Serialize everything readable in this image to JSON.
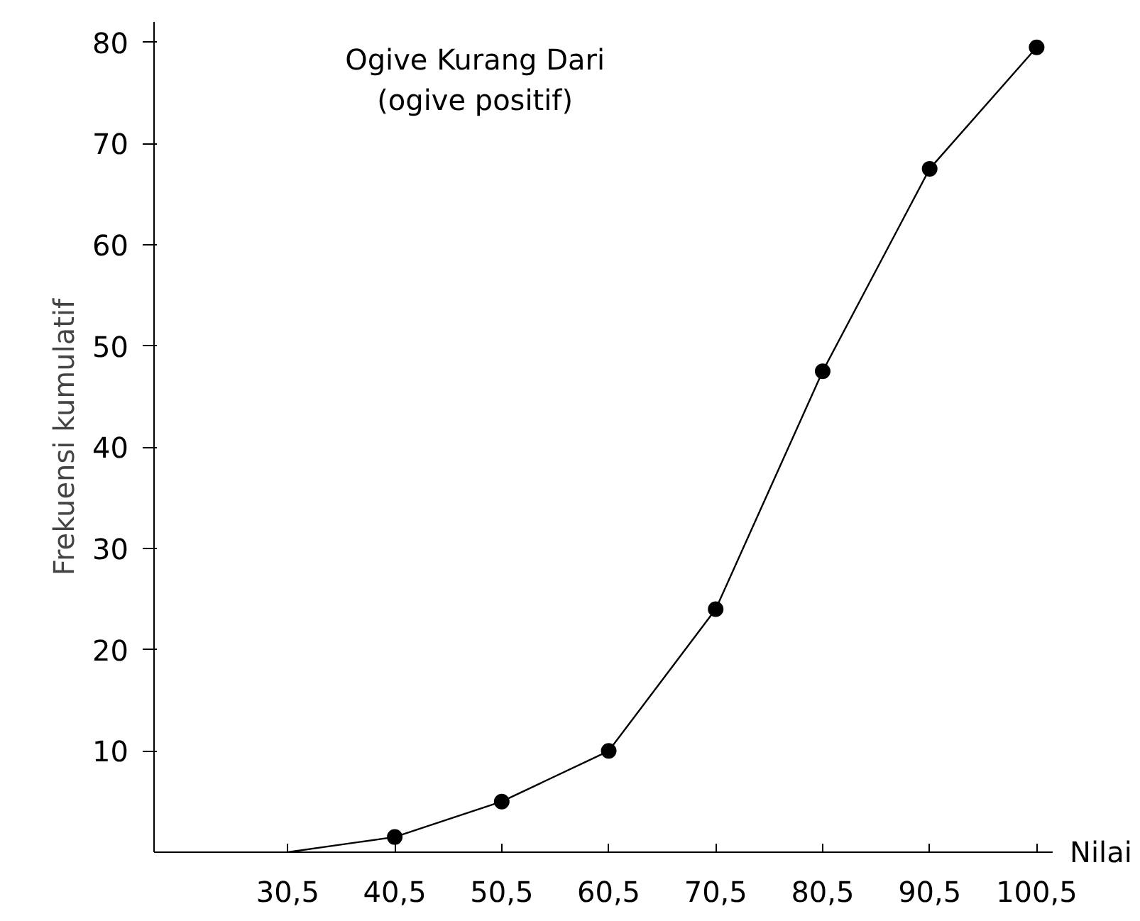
{
  "chart_data": {
    "type": "line",
    "title": "Ogive Kurang Dari\n(ogive positif)",
    "xlabel": "Nilai",
    "ylabel": "Frekuensi kumulatif",
    "x": [
      30.5,
      40.5,
      50.5,
      60.5,
      70.5,
      80.5,
      90.5,
      100.5
    ],
    "series": [
      {
        "color": "#000000",
        "marker": "none",
        "values": [
          0,
          1.5,
          5,
          10,
          24,
          47.5,
          67.5,
          79.5
        ]
      },
      {
        "type": "scatter",
        "color": "#000000",
        "marker": "circle",
        "values": [
          null,
          1.5,
          5,
          10,
          24,
          47.5,
          67.5,
          79.5
        ]
      }
    ],
    "xlim": [
      18,
      102
    ],
    "ylim": [
      0,
      82
    ],
    "xticks": [
      {
        "value": 30.5,
        "label": "30,5"
      },
      {
        "value": 40.5,
        "label": "40,5"
      },
      {
        "value": 50.5,
        "label": "50,5"
      },
      {
        "value": 60.5,
        "label": "60,5"
      },
      {
        "value": 70.5,
        "label": "70,5"
      },
      {
        "value": 80.5,
        "label": "80,5"
      },
      {
        "value": 90.5,
        "label": "90,5"
      },
      {
        "value": 100.5,
        "label": "100,5"
      }
    ],
    "yticks": [
      10,
      20,
      30,
      40,
      50,
      60,
      70,
      80
    ],
    "grid": false
  }
}
